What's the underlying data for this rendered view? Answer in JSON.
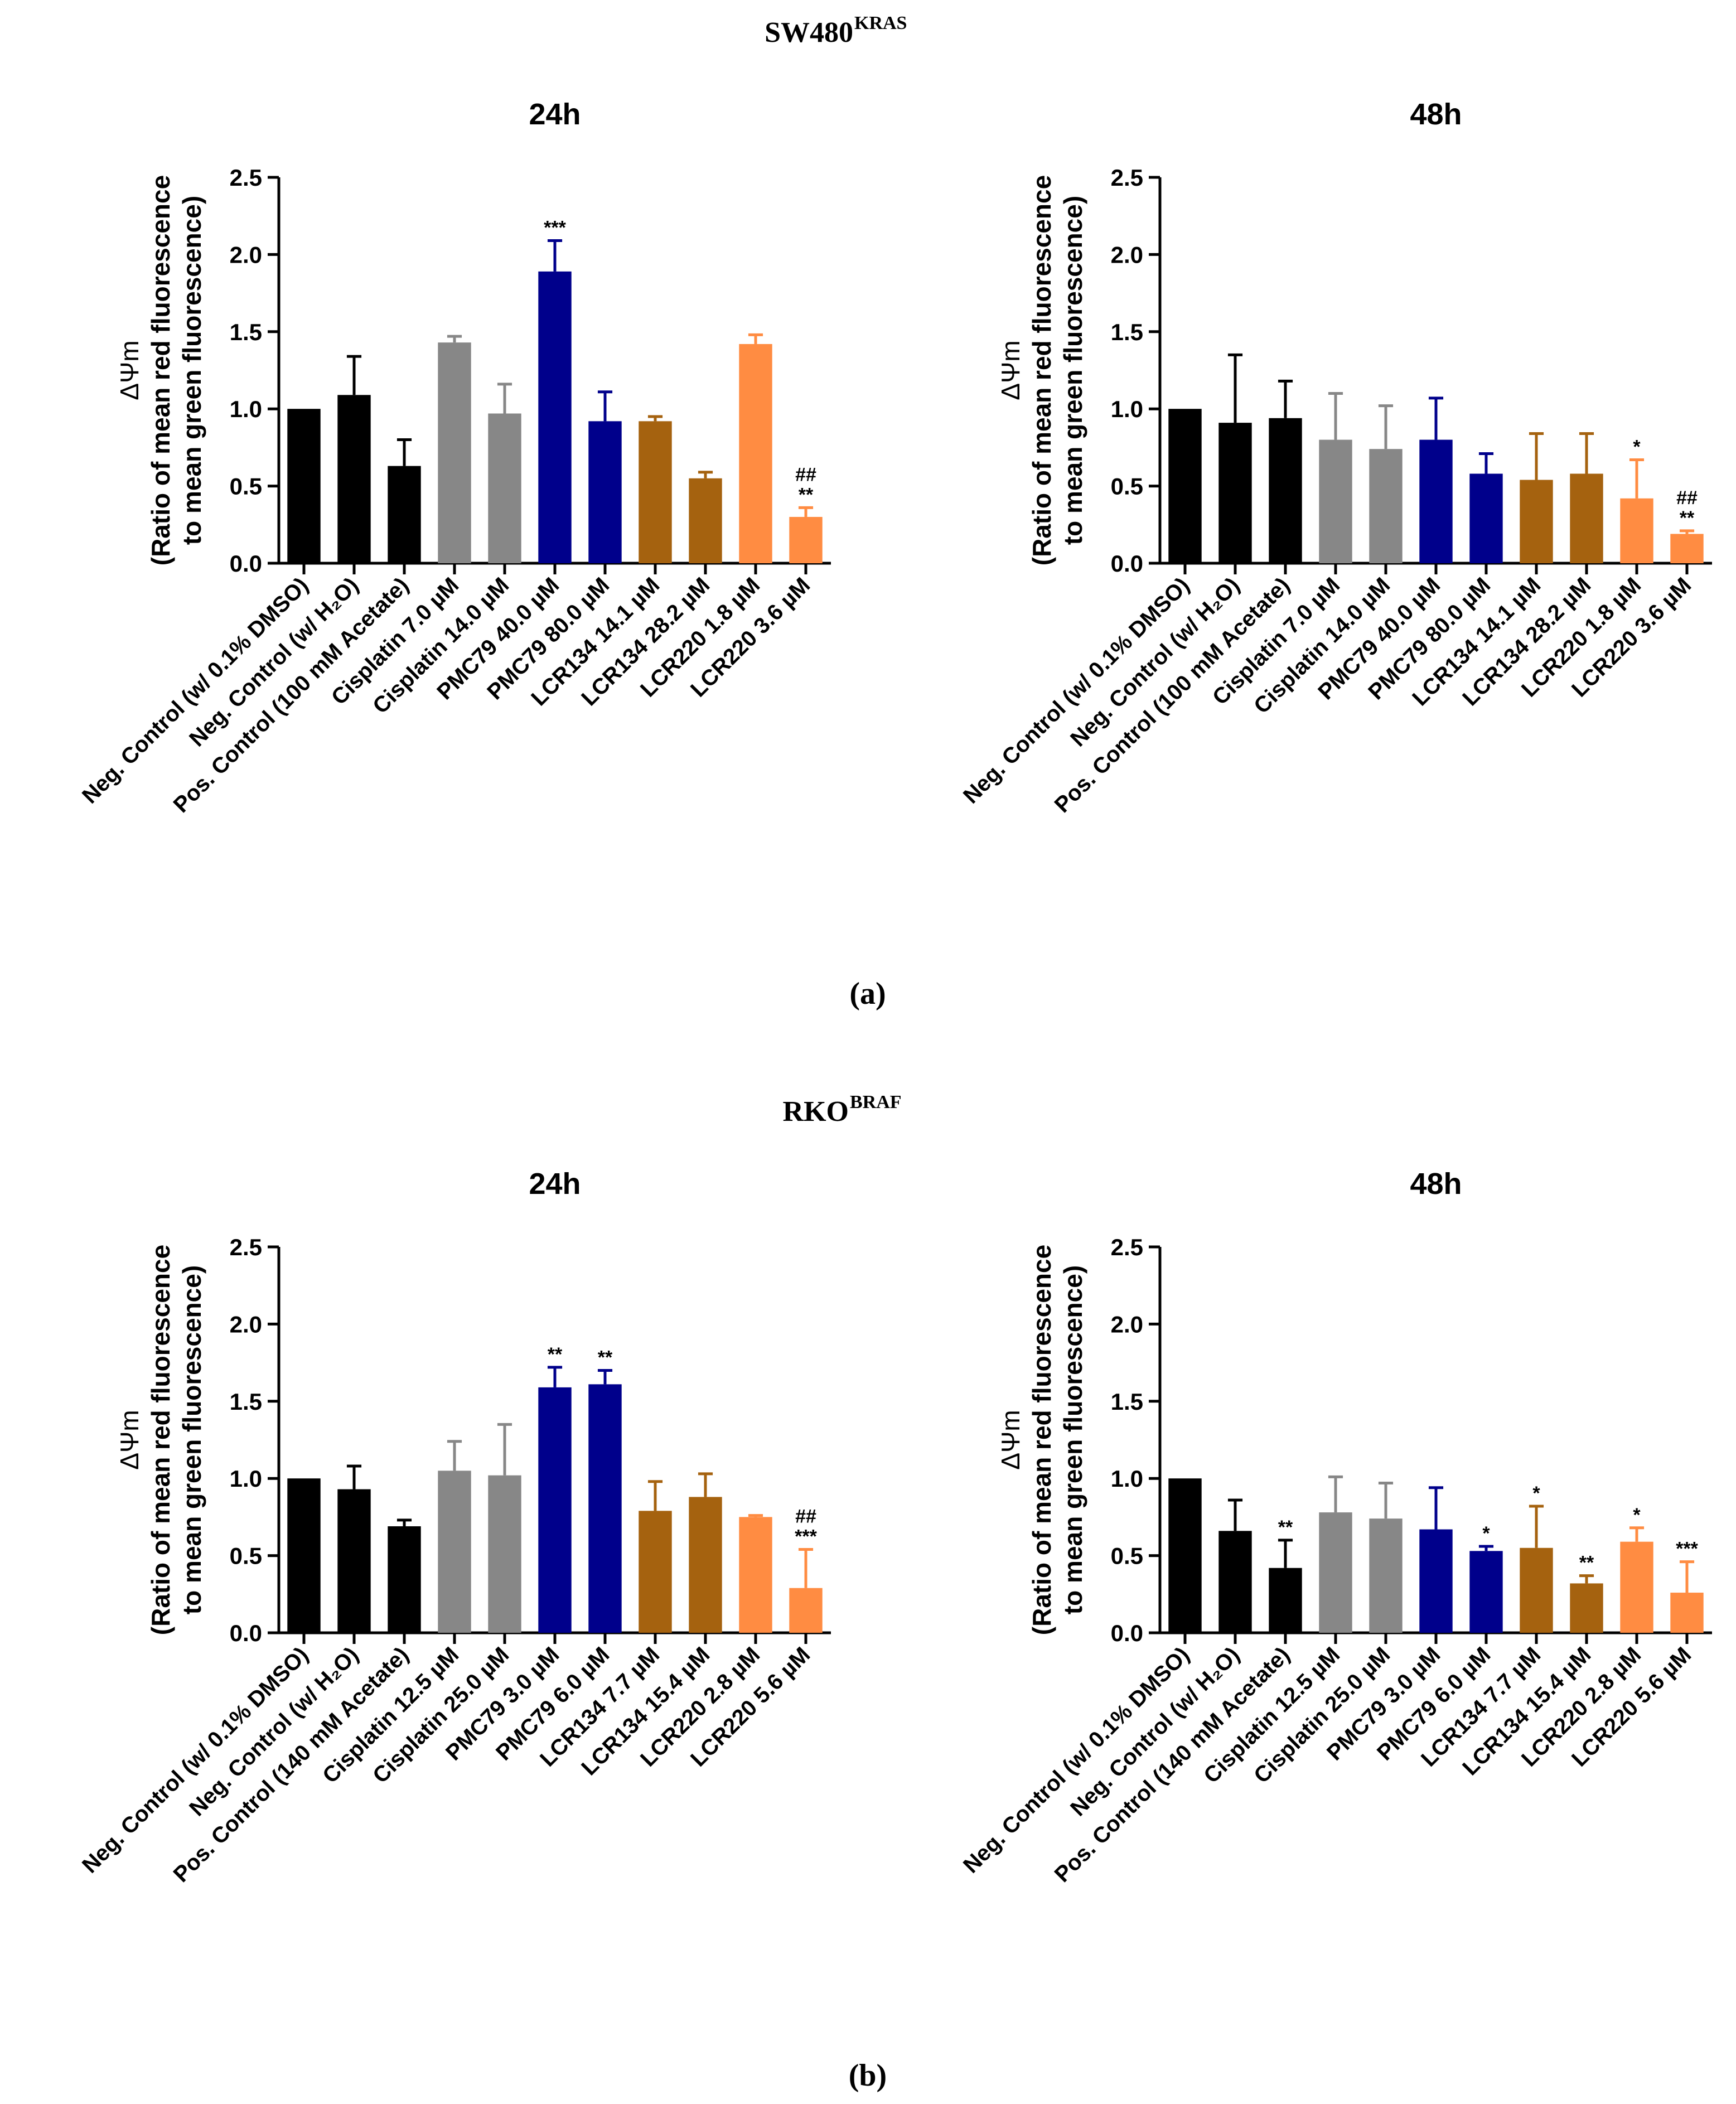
{
  "figure": {
    "panels": [
      {
        "cell_line": "SW480",
        "cell_line_superscript": "KRAS",
        "caption": "(a)"
      },
      {
        "cell_line": "RKO",
        "cell_line_superscript": "BRAF",
        "caption": "(b)"
      }
    ]
  },
  "colors": {
    "black": "#000000",
    "gray": "#878787",
    "navy": "#00008b",
    "brown": "#a5620f",
    "orange": "#ff8c42"
  },
  "chart_data": [
    {
      "type": "bar",
      "panel": "(a)",
      "title": "24h",
      "ylabel_line1": "ΔΨm",
      "ylabel_line2": "(Ratio of mean red fluorescence",
      "ylabel_line3": "to mean green fluorescence)",
      "ylim": [
        0,
        2.5
      ],
      "yticks": [
        "0.0",
        "0.5",
        "1.0",
        "1.5",
        "2.0",
        "2.5"
      ],
      "categories": [
        "Neg. Control (w/ 0.1% DMSO)",
        "Neg. Control (w/ H₂O)",
        "Pos. Control (100 mM Acetate)",
        "Cisplatin 7.0 µM",
        "Cisplatin 14.0 µM",
        "PMC79 40.0 µM",
        "PMC79 80.0 µM",
        "LCR134 14.1 µM",
        "LCR134 28.2 µM",
        "LCR220 1.8 µM",
        "LCR220 3.6 µM"
      ],
      "values": [
        1.0,
        1.09,
        0.63,
        1.43,
        0.97,
        1.89,
        0.92,
        0.92,
        0.55,
        1.42,
        0.3
      ],
      "errors": [
        0,
        0.25,
        0.17,
        0.04,
        0.19,
        0.2,
        0.19,
        0.03,
        0.04,
        0.06,
        0.06
      ],
      "colors": [
        "black",
        "black",
        "black",
        "gray",
        "gray",
        "navy",
        "navy",
        "brown",
        "brown",
        "orange",
        "orange"
      ],
      "annotations": [
        [],
        [],
        [],
        [],
        [],
        [
          "***"
        ],
        [],
        [],
        [],
        [],
        [
          "##",
          "**"
        ]
      ]
    },
    {
      "type": "bar",
      "panel": "(a)",
      "title": "48h",
      "ylabel_line1": "ΔΨm",
      "ylabel_line2": "(Ratio of mean red fluorescence",
      "ylabel_line3": "to mean green fluorescence)",
      "ylim": [
        0,
        2.5
      ],
      "yticks": [
        "0.0",
        "0.5",
        "1.0",
        "1.5",
        "2.0",
        "2.5"
      ],
      "categories": [
        "Neg. Control (w/ 0.1% DMSO)",
        "Neg. Control (w/ H₂O)",
        "Pos. Control (100 mM Acetate)",
        "Cisplatin 7.0 µM",
        "Cisplatin 14.0 µM",
        "PMC79 40.0 µM",
        "PMC79 80.0 µM",
        "LCR134 14.1 µM",
        "LCR134 28.2 µM",
        "LCR220 1.8 µM",
        "LCR220 3.6 µM"
      ],
      "values": [
        1.0,
        0.91,
        0.94,
        0.8,
        0.74,
        0.8,
        0.58,
        0.54,
        0.58,
        0.42,
        0.19
      ],
      "errors": [
        0,
        0.44,
        0.24,
        0.3,
        0.28,
        0.27,
        0.13,
        0.3,
        0.26,
        0.25,
        0.02
      ],
      "colors": [
        "black",
        "black",
        "black",
        "gray",
        "gray",
        "navy",
        "navy",
        "brown",
        "brown",
        "orange",
        "orange"
      ],
      "annotations": [
        [],
        [],
        [],
        [],
        [],
        [],
        [],
        [],
        [],
        [
          "*"
        ],
        [
          "##",
          "**"
        ]
      ]
    },
    {
      "type": "bar",
      "panel": "(b)",
      "title": "24h",
      "ylabel_line1": "ΔΨm",
      "ylabel_line2": "(Ratio of mean red fluorescence",
      "ylabel_line3": "to mean green fluorescence)",
      "ylim": [
        0,
        2.5
      ],
      "yticks": [
        "0.0",
        "0.5",
        "1.0",
        "1.5",
        "2.0",
        "2.5"
      ],
      "categories": [
        "Neg. Control (w/ 0.1% DMSO)",
        "Neg. Control (w/ H₂O)",
        "Pos. Control (140 mM Acetate)",
        "Cisplatin 12.5 µM",
        "Cisplatin 25.0 µM",
        "PMC79 3.0 µM",
        "PMC79 6.0 µM",
        "LCR134 7.7 µM",
        "LCR134 15.4 µM",
        "LCR220 2.8 µM",
        "LCR220 5.6 µM"
      ],
      "values": [
        1.0,
        0.93,
        0.69,
        1.05,
        1.02,
        1.59,
        1.61,
        0.79,
        0.88,
        0.75,
        0.29
      ],
      "errors": [
        0,
        0.15,
        0.04,
        0.19,
        0.33,
        0.13,
        0.09,
        0.19,
        0.15,
        0.01,
        0.25
      ],
      "colors": [
        "black",
        "black",
        "black",
        "gray",
        "gray",
        "navy",
        "navy",
        "brown",
        "brown",
        "orange",
        "orange"
      ],
      "annotations": [
        [],
        [],
        [],
        [],
        [],
        [
          "**"
        ],
        [
          "**"
        ],
        [],
        [],
        [],
        [
          "##",
          "***"
        ]
      ]
    },
    {
      "type": "bar",
      "panel": "(b)",
      "title": "48h",
      "ylabel_line1": "ΔΨm",
      "ylabel_line2": "(Ratio of mean red fluorescence",
      "ylabel_line3": "to mean green fluorescence)",
      "ylim": [
        0,
        2.5
      ],
      "yticks": [
        "0.0",
        "0.5",
        "1.0",
        "1.5",
        "2.0",
        "2.5"
      ],
      "categories": [
        "Neg. Control (w/ 0.1% DMSO)",
        "Neg. Control (w/ H₂O)",
        "Pos. Control (140 mM Acetate)",
        "Cisplatin 12.5 µM",
        "Cisplatin 25.0 µM",
        "PMC79 3.0 µM",
        "PMC79 6.0 µM",
        "LCR134 7.7 µM",
        "LCR134 15.4 µM",
        "LCR220 2.8 µM",
        "LCR220 5.6 µM"
      ],
      "values": [
        1.0,
        0.66,
        0.42,
        0.78,
        0.74,
        0.67,
        0.53,
        0.55,
        0.32,
        0.59,
        0.26
      ],
      "errors": [
        0,
        0.2,
        0.18,
        0.23,
        0.23,
        0.27,
        0.03,
        0.27,
        0.05,
        0.09,
        0.2
      ],
      "colors": [
        "black",
        "black",
        "black",
        "gray",
        "gray",
        "navy",
        "navy",
        "brown",
        "brown",
        "orange",
        "orange"
      ],
      "annotations": [
        [],
        [],
        [
          "**"
        ],
        [],
        [],
        [],
        [
          "*"
        ],
        [
          "*"
        ],
        [
          "**"
        ],
        [
          "*"
        ],
        [
          "***"
        ]
      ]
    }
  ]
}
